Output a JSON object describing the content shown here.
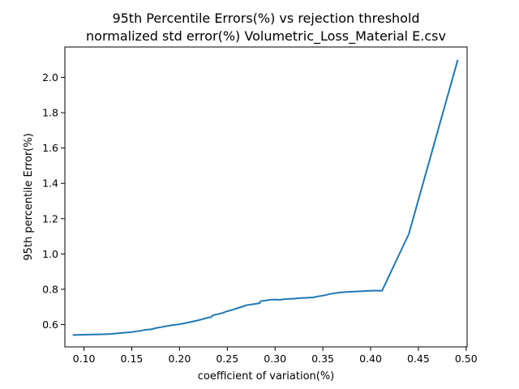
{
  "chart_data": {
    "type": "line",
    "title": "95th Percentile Errors(%) vs rejection threshold",
    "subtitle": "normalized std error(%) Volumetric_Loss_Material E.csv",
    "xlabel": "coefficient of variation(%)",
    "ylabel": "95th percentile Error(%)",
    "xlim": [
      0.08,
      0.501
    ],
    "ylim": [
      0.474,
      2.172
    ],
    "grid": false,
    "x_ticks": [
      {
        "value": 0.1,
        "label": "0.10"
      },
      {
        "value": 0.15,
        "label": "0.15"
      },
      {
        "value": 0.2,
        "label": "0.20"
      },
      {
        "value": 0.25,
        "label": "0.25"
      },
      {
        "value": 0.3,
        "label": "0.30"
      },
      {
        "value": 0.35,
        "label": "0.35"
      },
      {
        "value": 0.4,
        "label": "0.40"
      },
      {
        "value": 0.45,
        "label": "0.45"
      },
      {
        "value": 0.5,
        "label": "0.50"
      }
    ],
    "y_ticks": [
      {
        "value": 0.6,
        "label": "0.6"
      },
      {
        "value": 0.8,
        "label": "0.8"
      },
      {
        "value": 1.0,
        "label": "1.0"
      },
      {
        "value": 1.2,
        "label": "1.2"
      },
      {
        "value": 1.4,
        "label": "1.4"
      },
      {
        "value": 1.6,
        "label": "1.6"
      },
      {
        "value": 1.8,
        "label": "1.8"
      },
      {
        "value": 2.0,
        "label": "2.0"
      }
    ],
    "series": [
      {
        "color": "#1f77b4",
        "x": [
          0.089,
          0.1,
          0.11,
          0.12,
          0.125,
          0.13,
          0.14,
          0.15,
          0.155,
          0.16,
          0.165,
          0.17,
          0.175,
          0.18,
          0.19,
          0.2,
          0.21,
          0.22,
          0.23,
          0.233,
          0.235,
          0.24,
          0.245,
          0.25,
          0.255,
          0.26,
          0.265,
          0.27,
          0.28,
          0.284,
          0.285,
          0.29,
          0.295,
          0.3,
          0.305,
          0.31,
          0.32,
          0.325,
          0.33,
          0.34,
          0.345,
          0.35,
          0.36,
          0.37,
          0.38,
          0.39,
          0.4,
          0.405,
          0.412,
          0.44,
          0.491
        ],
        "y": [
          0.541,
          0.543,
          0.544,
          0.545,
          0.546,
          0.548,
          0.553,
          0.558,
          0.562,
          0.566,
          0.571,
          0.573,
          0.58,
          0.585,
          0.595,
          0.602,
          0.613,
          0.625,
          0.64,
          0.642,
          0.653,
          0.659,
          0.666,
          0.676,
          0.683,
          0.692,
          0.7,
          0.71,
          0.718,
          0.722,
          0.733,
          0.736,
          0.741,
          0.742,
          0.74,
          0.744,
          0.747,
          0.75,
          0.751,
          0.754,
          0.76,
          0.764,
          0.776,
          0.783,
          0.786,
          0.789,
          0.792,
          0.793,
          0.792,
          1.113,
          2.095
        ]
      }
    ]
  }
}
